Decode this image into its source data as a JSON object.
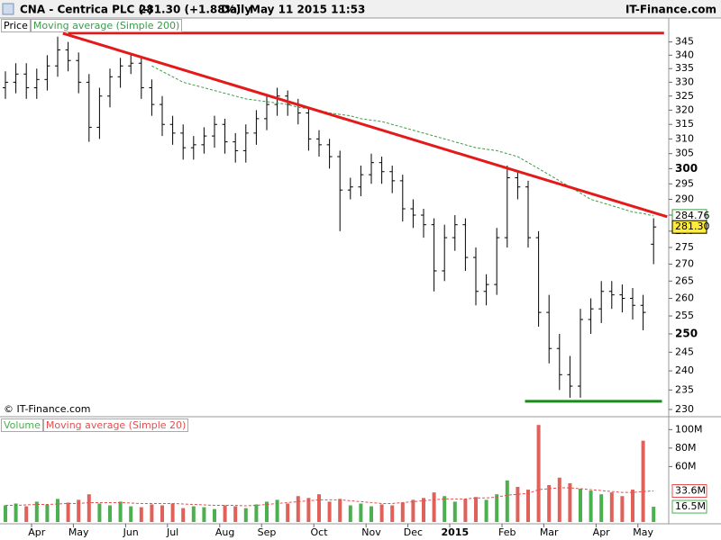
{
  "header": {
    "symbol": "CNA - Centrica PLC (-)",
    "quote": "281.30 (+1.88%)",
    "period": "Daily",
    "datetime": "May 11 2015 11:53",
    "source": "IT-Finance.com"
  },
  "chart_data": [
    {
      "type": "ohlc",
      "watermark": "© IT-Finance.com",
      "log": true,
      "ylim": [
        228.4,
        349
      ],
      "yticks": [
        230,
        235,
        240,
        245,
        250,
        255,
        260,
        265,
        270,
        275,
        280,
        285,
        290,
        295,
        300,
        305,
        310,
        315,
        320,
        325,
        330,
        335,
        340,
        345
      ],
      "series": [
        {
          "name": "Price",
          "color": "#000000",
          "last_label": "281.30",
          "open": [
            328,
            330,
            333,
            328,
            331,
            336,
            342,
            338,
            330,
            314,
            325,
            332,
            336,
            337,
            328,
            322,
            315,
            312,
            307,
            308,
            311,
            315,
            309,
            306,
            312,
            317,
            322,
            325,
            322,
            319,
            310,
            308,
            304,
            293,
            294,
            298,
            302,
            299,
            296,
            287,
            285,
            282,
            268,
            278,
            282,
            272,
            262,
            264,
            278,
            297,
            294,
            278,
            256,
            246,
            239,
            236,
            254,
            257,
            262,
            261,
            260,
            258,
            276
          ],
          "high": [
            334,
            337,
            337,
            335,
            340,
            347,
            345,
            341,
            333,
            328,
            335,
            339,
            340,
            339,
            331,
            325,
            318,
            315,
            311,
            314,
            318,
            317,
            312,
            315,
            320,
            325,
            328,
            327,
            324,
            321,
            313,
            310,
            306,
            297,
            301,
            305,
            304,
            301,
            298,
            290,
            287,
            284,
            282,
            285,
            284,
            275,
            267,
            281,
            301,
            299,
            296,
            280,
            261,
            250,
            244,
            257,
            260,
            265,
            265,
            264,
            263,
            261,
            284
          ],
          "low": [
            324,
            326,
            324,
            324,
            327,
            332,
            334,
            326,
            309,
            310,
            321,
            328,
            333,
            324,
            318,
            311,
            308,
            303,
            303,
            305,
            307,
            305,
            302,
            302,
            308,
            313,
            318,
            318,
            315,
            306,
            304,
            300,
            280,
            290,
            291,
            295,
            295,
            292,
            283,
            281,
            278,
            262,
            265,
            274,
            268,
            258,
            258,
            261,
            275,
            290,
            275,
            252,
            242,
            235,
            233,
            233,
            250,
            253,
            257,
            256,
            254,
            251,
            270
          ],
          "close": [
            330,
            333,
            328,
            331,
            336,
            342,
            338,
            330,
            314,
            325,
            332,
            336,
            337,
            328,
            322,
            315,
            312,
            307,
            308,
            311,
            315,
            309,
            306,
            312,
            317,
            322,
            325,
            322,
            319,
            310,
            308,
            304,
            293,
            294,
            298,
            302,
            299,
            296,
            287,
            285,
            282,
            268,
            278,
            282,
            272,
            262,
            264,
            278,
            297,
            294,
            278,
            256,
            246,
            239,
            236,
            254,
            257,
            262,
            261,
            260,
            258,
            256,
            281.3
          ]
        },
        {
          "name": "Moving average (Simple 200)",
          "color": "#3c9a4a",
          "last_label": "284.76",
          "values": [
            null,
            null,
            null,
            null,
            null,
            null,
            null,
            null,
            null,
            null,
            null,
            null,
            null,
            null,
            336,
            334,
            332,
            330,
            329,
            328,
            327,
            326,
            325,
            324,
            323.5,
            323,
            322.5,
            322,
            321,
            320.5,
            320,
            319,
            318.5,
            318,
            317,
            316.5,
            316,
            315,
            314,
            313,
            312,
            311,
            310,
            309,
            308,
            307,
            306.5,
            306,
            305,
            304,
            302,
            300,
            298,
            296,
            294,
            292,
            290,
            289,
            288,
            287,
            286,
            285.5,
            284.76
          ]
        }
      ],
      "trendlines": [
        {
          "color": "#e41a1a",
          "x": [
            5.5,
            63.3
          ],
          "y": [
            348.3,
            284.5
          ]
        },
        {
          "color": "#e41a1a",
          "x": [
            6,
            63
          ],
          "y": [
            348.4,
            348.4
          ]
        },
        {
          "color": "#1a8a1a",
          "x": [
            49.7,
            62.8
          ],
          "y": [
            232.1,
            232.1
          ]
        }
      ]
    },
    {
      "type": "volume",
      "categories": [
        null,
        null,
        null,
        "Apr",
        null,
        null,
        null,
        "May",
        null,
        null,
        null,
        null,
        "Jun",
        null,
        null,
        null,
        "Jul",
        null,
        null,
        null,
        null,
        "Aug",
        null,
        null,
        null,
        "Sep",
        null,
        null,
        null,
        null,
        "Oct",
        null,
        null,
        null,
        null,
        "Nov",
        null,
        null,
        null,
        "Dec",
        null,
        null,
        null,
        "2015",
        null,
        null,
        null,
        null,
        "Feb",
        null,
        null,
        null,
        "Mar",
        null,
        null,
        null,
        null,
        "Apr",
        null,
        null,
        null,
        "May",
        null
      ],
      "ylim": [
        0,
        112
      ],
      "yticks": [
        {
          "value": 60,
          "label": "60M"
        },
        {
          "value": 80,
          "label": "80M"
        },
        {
          "value": 100,
          "label": "100M"
        }
      ],
      "series": [
        {
          "name": "Volume",
          "color": "#4caf50",
          "down_color": "#e0605a",
          "last_label": "16.5M",
          "values": [
            18,
            20,
            17,
            22,
            19,
            25,
            21,
            24,
            30,
            20,
            18,
            22,
            17,
            16,
            19,
            18,
            20,
            15,
            17,
            16,
            14,
            18,
            17,
            15,
            19,
            22,
            24,
            20,
            28,
            26,
            30,
            22,
            25,
            18,
            20,
            17,
            19,
            18,
            21,
            24,
            26,
            32,
            28,
            22,
            25,
            27,
            24,
            30,
            45,
            38,
            35,
            105,
            40,
            48,
            42,
            36,
            34,
            30,
            32,
            28,
            35,
            88,
            16.5
          ]
        },
        {
          "name": "Moving average (Simple 20)",
          "color": "#e05050",
          "last_label": "33.6M",
          "values": [
            18,
            18,
            18.5,
            19,
            19,
            19.5,
            20,
            20,
            21,
            21,
            21,
            21,
            20.5,
            20,
            20,
            20,
            20,
            19.5,
            19,
            18.5,
            18,
            18,
            18,
            17.5,
            18,
            19,
            20,
            21,
            22,
            23,
            24,
            24,
            24,
            23,
            22,
            21,
            20,
            20,
            21,
            22,
            23,
            24,
            25,
            25,
            25,
            26,
            26,
            27,
            29,
            30,
            31,
            35,
            36,
            37,
            37,
            36,
            35,
            34,
            33,
            32,
            32,
            33,
            33.6
          ]
        }
      ]
    }
  ]
}
